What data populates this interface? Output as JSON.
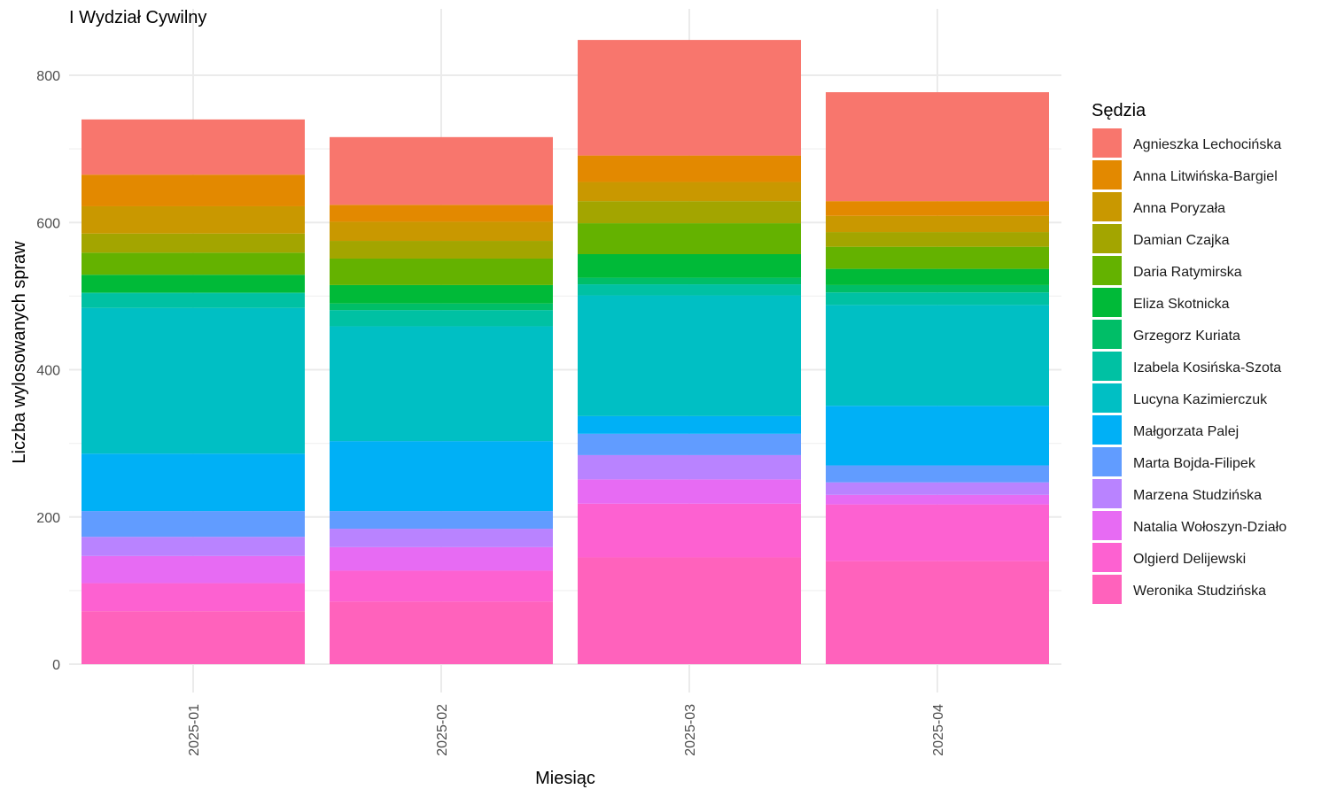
{
  "chart_data": {
    "type": "bar",
    "stacked": true,
    "title": "I Wydział Cywilny",
    "xlabel": "Miesiąc",
    "ylabel": "Liczba wylosowanych spraw",
    "legend_title": "Sędzia",
    "legend_position": "right",
    "grid": true,
    "ylim": [
      0,
      850
    ],
    "y_ticks": [
      0,
      200,
      400,
      600,
      800
    ],
    "categories": [
      "2025-01",
      "2025-02",
      "2025-03",
      "2025-04"
    ],
    "series": [
      {
        "name": "Weronika Studzińska",
        "color": "#FF62BC",
        "values": [
          72,
          85,
          145,
          140
        ]
      },
      {
        "name": "Olgierd Delijewski",
        "color": "#FD61D1",
        "values": [
          38,
          42,
          73,
          77
        ]
      },
      {
        "name": "Natalia Wołoszyn-Działo",
        "color": "#E76BF3",
        "values": [
          37,
          32,
          33,
          13
        ]
      },
      {
        "name": "Marzena Studzińska",
        "color": "#B983FF",
        "values": [
          26,
          25,
          33,
          17
        ]
      },
      {
        "name": "Marta Bojda-Filipek",
        "color": "#619CFF",
        "values": [
          35,
          24,
          29,
          23
        ]
      },
      {
        "name": "Małgorzata Palej",
        "color": "#00B0F6",
        "values": [
          78,
          95,
          24,
          81
        ]
      },
      {
        "name": "Lucyna Kazimierczuk",
        "color": "#00BFC4",
        "values": [
          198,
          156,
          164,
          137
        ]
      },
      {
        "name": "Izabela Kosińska-Szota",
        "color": "#00C1A3",
        "values": [
          20,
          22,
          15,
          17
        ]
      },
      {
        "name": "Grzegorz Kuriata",
        "color": "#00BE67",
        "values": [
          1,
          9,
          9,
          10
        ]
      },
      {
        "name": "Eliza Skotnicka",
        "color": "#00BA38",
        "values": [
          24,
          25,
          32,
          22
        ]
      },
      {
        "name": "Daria Ratymirska",
        "color": "#64B200",
        "values": [
          30,
          36,
          42,
          30
        ]
      },
      {
        "name": "Damian Czajka",
        "color": "#A3A500",
        "values": [
          26,
          24,
          30,
          20
        ]
      },
      {
        "name": "Anna Poryzała",
        "color": "#C99800",
        "values": [
          37,
          26,
          26,
          22
        ]
      },
      {
        "name": "Anna Litwińska-Bargiel",
        "color": "#E38900",
        "values": [
          43,
          23,
          36,
          20
        ]
      },
      {
        "name": "Agnieszka Lechocińska",
        "color": "#F8766D",
        "values": [
          75,
          92,
          157,
          148
        ]
      }
    ],
    "legend_order": [
      "Agnieszka Lechocińska",
      "Anna Litwińska-Bargiel",
      "Anna Poryzała",
      "Damian Czajka",
      "Daria Ratymirska",
      "Eliza Skotnicka",
      "Grzegorz Kuriata",
      "Izabela Kosińska-Szota",
      "Lucyna Kazimierczuk",
      "Małgorzata Palej",
      "Marta Bojda-Filipek",
      "Marzena Studzińska",
      "Natalia Wołoszyn-Działo",
      "Olgierd Delijewski",
      "Weronika Studzińska"
    ]
  }
}
